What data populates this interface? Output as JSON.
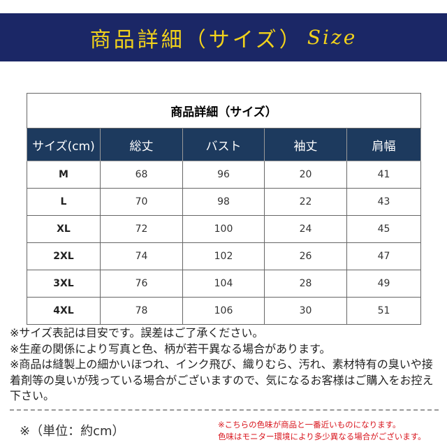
{
  "banner": {
    "title": "商品詳細（サイズ）",
    "suffix": "Size"
  },
  "table": {
    "title": "商品詳細（サイズ）",
    "headers": [
      "サイズ(cm)",
      "総丈",
      "バスト",
      "袖丈",
      "肩幅"
    ],
    "rows": [
      [
        "M",
        "68",
        "96",
        "20",
        "41"
      ],
      [
        "L",
        "70",
        "98",
        "22",
        "43"
      ],
      [
        "XL",
        "72",
        "100",
        "24",
        "45"
      ],
      [
        "2XL",
        "74",
        "102",
        "26",
        "47"
      ],
      [
        "3XL",
        "76",
        "104",
        "28",
        "49"
      ],
      [
        "4XL",
        "78",
        "106",
        "30",
        "51"
      ]
    ]
  },
  "notes": [
    "※サイズ表記は目安です。誤差はご了承ください。",
    "※生産の関係により写真と色、柄が若干異なる場合があります。",
    "※商品は縫製上の細かいほつれ、インク飛び、織りむら、汚れ、素材特有の臭いや接着剤等の臭いが残っている場合がございますので、気になるお客様はご購入をお控え下さい。"
  ],
  "unit": "※（単位：約cm）",
  "color_notes": [
    "※こちらの色味が商品と一番近いものになります。",
    "色味はモニター環境により多少異なる場合がございます。"
  ],
  "colors": {
    "banner_bg": "#1b2766",
    "banner_text": "#f2d21b",
    "header_bg": "#1d3a5e",
    "note_red": "#d8141c"
  }
}
